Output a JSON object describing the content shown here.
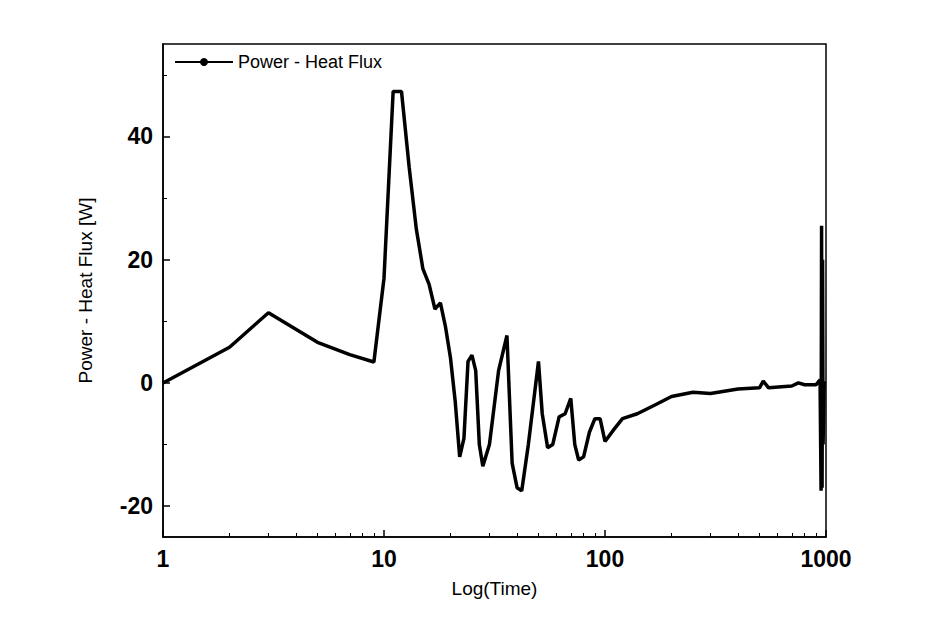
{
  "chart_data": {
    "type": "line",
    "x_label": "Log(Time)",
    "y_label": "Power - Heat Flux [W]",
    "x": [
      1,
      2,
      3,
      5,
      7,
      9,
      10,
      11,
      12,
      13,
      14,
      15,
      16,
      17,
      18,
      19,
      20,
      21,
      22,
      23,
      24,
      25,
      26,
      27,
      28,
      30,
      33,
      36,
      38,
      40,
      42,
      45,
      50,
      52,
      55,
      58,
      62,
      66,
      70,
      73,
      76,
      80,
      85,
      90,
      95,
      100,
      110,
      120,
      140,
      170,
      200,
      250,
      300,
      400,
      500,
      520,
      550,
      700,
      750,
      800,
      900,
      940,
      950,
      955,
      960,
      965,
      970,
      980,
      1000
    ],
    "series": [
      {
        "name": "Power - Heat Flux",
        "color": "#000000",
        "line_style": "solid",
        "values": [
          0,
          5.8,
          11.4,
          6.6,
          4.6,
          3.4,
          17,
          47.3,
          47.3,
          35,
          25,
          18.5,
          16,
          12,
          13,
          9,
          4,
          -3,
          -12,
          -9,
          3.5,
          4.5,
          2,
          -10,
          -13.5,
          -10,
          2,
          7.7,
          -13,
          -17,
          -17.5,
          -10,
          3.5,
          -5,
          -10.5,
          -10,
          -5.5,
          -5,
          -2.5,
          -10,
          -12.5,
          -12,
          -8,
          -5.8,
          -5.8,
          -9.5,
          -7.5,
          -5.8,
          -5,
          -3.5,
          -2.2,
          -1.5,
          -1.7,
          -1,
          -0.8,
          0.3,
          -0.8,
          -0.5,
          0,
          -0.3,
          -0.3,
          0.5,
          -17.5,
          25.5,
          -17,
          20,
          -10,
          0,
          0
        ]
      }
    ],
    "xlim": [
      1,
      1000
    ],
    "xticks": [
      1,
      10,
      100,
      1000
    ],
    "ylim": [
      -25,
      55
    ],
    "yticks": [
      -20,
      0,
      20,
      40
    ],
    "log": "x",
    "grid": false,
    "legend": "upper left"
  }
}
